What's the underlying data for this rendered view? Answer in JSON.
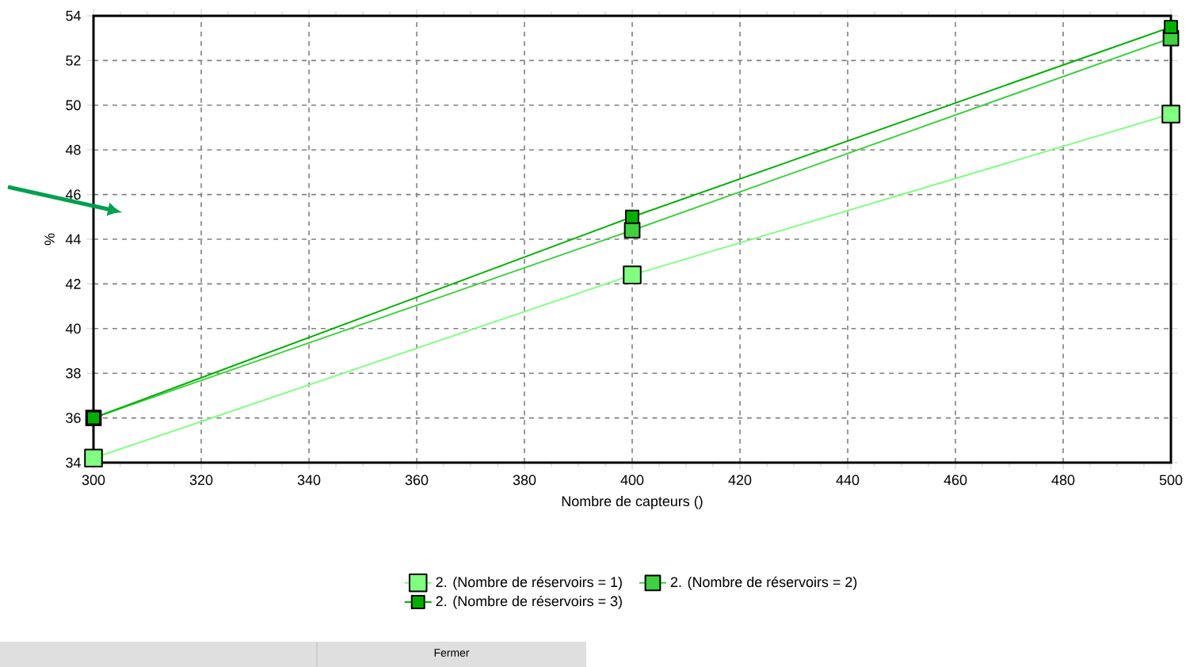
{
  "chart_data": {
    "type": "line",
    "xlabel": "Nombre de capteurs  ()",
    "ylabel": "%",
    "x": [
      300,
      400,
      500
    ],
    "series": [
      {
        "name": "2. (Nombre de réservoirs = 1)",
        "color": "#80ff80",
        "values": [
          34.2,
          42.4,
          49.6
        ]
      },
      {
        "name": "2. (Nombre de réservoirs = 2)",
        "color": "#40d040",
        "values": [
          36.0,
          44.4,
          53.0
        ]
      },
      {
        "name": "2. (Nombre de réservoirs = 3)",
        "color": "#00b000",
        "values": [
          36.0,
          45.0,
          53.5
        ]
      }
    ],
    "xlim": [
      300,
      500
    ],
    "xticks": [
      300,
      320,
      340,
      360,
      380,
      400,
      420,
      440,
      460,
      480,
      500
    ],
    "ylim": [
      34,
      54
    ],
    "yticks": [
      34,
      36,
      38,
      40,
      42,
      44,
      46,
      48,
      50,
      52,
      54
    ],
    "grid": true,
    "legend": "bottom",
    "marker": "square",
    "line_style": "solid",
    "annotations": [
      "Fermer"
    ]
  }
}
